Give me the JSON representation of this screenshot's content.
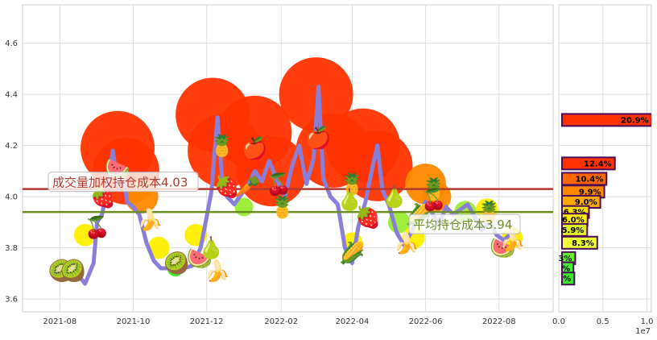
{
  "chart_data": [
    {
      "type": "line",
      "x_ticks": [
        "2021-08",
        "2021-10",
        "2021-12",
        "2022-02",
        "2022-04",
        "2022-06",
        "2022-08"
      ],
      "y_ticks": [
        "3.6",
        "3.8",
        "4.0",
        "4.2",
        "4.4",
        "4.6"
      ],
      "ylim": [
        3.55,
        4.75
      ],
      "xlim": [
        "2021-07-01",
        "2022-09-15"
      ],
      "grid": true,
      "series": [
        {
          "color": "#8a7fd8",
          "points": [
            [
              "2021-08-01",
              3.7
            ],
            [
              "2021-08-08",
              3.72
            ],
            [
              "2021-08-15",
              3.7
            ],
            [
              "2021-08-22",
              3.66
            ],
            [
              "2021-08-29",
              3.74
            ],
            [
              "2021-09-01",
              3.9
            ],
            [
              "2021-09-05",
              3.93
            ],
            [
              "2021-09-10",
              4.04
            ],
            [
              "2021-09-14",
              4.18
            ],
            [
              "2021-09-18",
              4.05
            ],
            [
              "2021-09-22",
              4.1
            ],
            [
              "2021-09-26",
              3.98
            ],
            [
              "2021-10-01",
              3.96
            ],
            [
              "2021-10-06",
              3.93
            ],
            [
              "2021-10-12",
              3.82
            ],
            [
              "2021-10-18",
              3.75
            ],
            [
              "2021-10-24",
              3.72
            ],
            [
              "2021-10-30",
              3.72
            ],
            [
              "2021-11-05",
              3.71
            ],
            [
              "2021-11-12",
              3.72
            ],
            [
              "2021-11-19",
              3.73
            ],
            [
              "2021-11-26",
              3.8
            ],
            [
              "2021-12-01",
              3.92
            ],
            [
              "2021-12-05",
              4.02
            ],
            [
              "2021-12-10",
              4.31
            ],
            [
              "2021-12-14",
              4.06
            ],
            [
              "2021-12-18",
              4.0
            ],
            [
              "2021-12-24",
              3.97
            ],
            [
              "2021-12-30",
              4.01
            ],
            [
              "2022-01-05",
              4.05
            ],
            [
              "2022-01-10",
              4.1
            ],
            [
              "2022-01-16",
              4.06
            ],
            [
              "2022-01-22",
              4.14
            ],
            [
              "2022-01-28",
              4.07
            ],
            [
              "2022-02-04",
              4.0
            ],
            [
              "2022-02-10",
              4.12
            ],
            [
              "2022-02-16",
              4.2
            ],
            [
              "2022-02-22",
              4.05
            ],
            [
              "2022-02-28",
              4.15
            ],
            [
              "2022-03-04",
              4.43
            ],
            [
              "2022-03-08",
              4.07
            ],
            [
              "2022-03-14",
              4.0
            ],
            [
              "2022-03-20",
              3.97
            ],
            [
              "2022-03-26",
              3.8
            ],
            [
              "2022-04-01",
              3.74
            ],
            [
              "2022-04-06",
              3.88
            ],
            [
              "2022-04-12",
              3.98
            ],
            [
              "2022-04-18",
              4.12
            ],
            [
              "2022-04-22",
              4.2
            ],
            [
              "2022-04-26",
              4.03
            ],
            [
              "2022-05-02",
              3.96
            ],
            [
              "2022-05-08",
              3.86
            ],
            [
              "2022-05-14",
              3.81
            ],
            [
              "2022-05-20",
              3.86
            ],
            [
              "2022-05-26",
              3.92
            ],
            [
              "2022-06-01",
              3.98
            ],
            [
              "2022-06-06",
              3.94
            ],
            [
              "2022-06-12",
              3.89
            ],
            [
              "2022-06-18",
              3.96
            ],
            [
              "2022-06-24",
              3.93
            ],
            [
              "2022-06-30",
              3.95
            ],
            [
              "2022-07-06",
              3.97
            ],
            [
              "2022-07-12",
              3.92
            ],
            [
              "2022-07-18",
              3.87
            ],
            [
              "2022-07-24",
              3.9
            ],
            [
              "2022-07-30",
              3.85
            ],
            [
              "2022-08-05",
              3.83
            ],
            [
              "2022-08-12",
              3.86
            ]
          ]
        }
      ],
      "hlines": [
        {
          "value": 4.03,
          "color": "#b03a2e",
          "label": "成交量加权持仓成本4.03",
          "label_color": "#b03a2e"
        },
        {
          "value": 3.94,
          "color": "#6b8e23",
          "label": "平均持仓成本3.94",
          "label_color": "#6b8e23"
        }
      ],
      "bubbles": [
        {
          "x": "2021-09-18",
          "y": 4.19,
          "r": 1.0,
          "color": "#ff3300"
        },
        {
          "x": "2021-09-25",
          "y": 4.1,
          "r": 0.9,
          "color": "#ff3300"
        },
        {
          "x": "2021-10-08",
          "y": 4.0,
          "r": 0.45,
          "color": "#ff8800"
        },
        {
          "x": "2021-12-06",
          "y": 4.32,
          "r": 1.0,
          "color": "#ff3300"
        },
        {
          "x": "2021-12-16",
          "y": 4.18,
          "r": 1.0,
          "color": "#ff3300"
        },
        {
          "x": "2022-01-10",
          "y": 4.25,
          "r": 1.0,
          "color": "#ff3300"
        },
        {
          "x": "2022-01-24",
          "y": 4.1,
          "r": 0.95,
          "color": "#ff3300"
        },
        {
          "x": "2022-03-02",
          "y": 4.4,
          "r": 1.0,
          "color": "#ff3300"
        },
        {
          "x": "2022-03-16",
          "y": 4.18,
          "r": 1.0,
          "color": "#ff3300"
        },
        {
          "x": "2022-04-10",
          "y": 4.2,
          "r": 1.0,
          "color": "#ff3300"
        },
        {
          "x": "2022-04-22",
          "y": 4.12,
          "r": 0.95,
          "color": "#ff3300"
        },
        {
          "x": "2022-06-01",
          "y": 4.05,
          "r": 0.55,
          "color": "#ff8800"
        },
        {
          "x": "2022-06-10",
          "y": 4.0,
          "r": 0.4,
          "color": "#ff8800"
        },
        {
          "x": "2021-08-22",
          "y": 3.85,
          "r": 0.3,
          "color": "#ffee00"
        },
        {
          "x": "2021-08-10",
          "y": 3.72,
          "r": 0.2,
          "color": "#33ee22"
        },
        {
          "x": "2021-10-22",
          "y": 3.8,
          "r": 0.3,
          "color": "#ffee00"
        },
        {
          "x": "2021-11-05",
          "y": 3.72,
          "r": 0.22,
          "color": "#33ee22"
        },
        {
          "x": "2021-11-22",
          "y": 3.85,
          "r": 0.3,
          "color": "#ffee00"
        },
        {
          "x": "2022-01-01",
          "y": 3.96,
          "r": 0.25,
          "color": "#99ee33"
        },
        {
          "x": "2022-04-01",
          "y": 3.82,
          "r": 0.28,
          "color": "#ffee00"
        },
        {
          "x": "2022-05-10",
          "y": 3.9,
          "r": 0.3,
          "color": "#99ee33"
        },
        {
          "x": "2022-05-22",
          "y": 3.84,
          "r": 0.3,
          "color": "#ffee00"
        },
        {
          "x": "2022-07-04",
          "y": 3.94,
          "r": 0.3,
          "color": "#99ee33"
        },
        {
          "x": "2022-07-22",
          "y": 3.95,
          "r": 0.3,
          "color": "#ffee00"
        },
        {
          "x": "2022-08-12",
          "y": 3.84,
          "r": 0.28,
          "color": "#ffee00"
        }
      ],
      "fruit": [
        {
          "x": "2021-09-18",
          "y": 4.11,
          "glyph": "🍉"
        },
        {
          "x": "2021-09-06",
          "y": 4.0,
          "glyph": "🍓"
        },
        {
          "x": "2021-09-01",
          "y": 3.88,
          "glyph": "🍒"
        },
        {
          "x": "2021-10-15",
          "y": 3.91,
          "glyph": "🍌"
        },
        {
          "x": "2021-08-02",
          "y": 3.71,
          "glyph": "🥝"
        },
        {
          "x": "2021-08-12",
          "y": 3.71,
          "glyph": "🥝"
        },
        {
          "x": "2021-11-06",
          "y": 3.74,
          "glyph": "🥝"
        },
        {
          "x": "2021-11-25",
          "y": 3.76,
          "glyph": "🍉"
        },
        {
          "x": "2021-12-05",
          "y": 3.8,
          "glyph": "🍐"
        },
        {
          "x": "2021-12-10",
          "y": 3.71,
          "glyph": "🍌"
        },
        {
          "x": "2021-12-14",
          "y": 4.2,
          "glyph": "🍍"
        },
        {
          "x": "2021-12-18",
          "y": 4.04,
          "glyph": "🍓"
        },
        {
          "x": "2022-01-04",
          "y": 4.04,
          "glyph": "🥕"
        },
        {
          "x": "2022-01-10",
          "y": 4.19,
          "glyph": "🍎"
        },
        {
          "x": "2022-01-30",
          "y": 4.05,
          "glyph": "🍒"
        },
        {
          "x": "2022-02-02",
          "y": 3.96,
          "glyph": "🍍"
        },
        {
          "x": "2022-03-04",
          "y": 4.23,
          "glyph": "🍎"
        },
        {
          "x": "2022-04-01",
          "y": 4.05,
          "glyph": "🍍"
        },
        {
          "x": "2022-03-30",
          "y": 3.99,
          "glyph": "🍐"
        },
        {
          "x": "2022-04-14",
          "y": 3.92,
          "glyph": "🍓"
        },
        {
          "x": "2022-04-01",
          "y": 3.78,
          "glyph": "🌽"
        },
        {
          "x": "2022-05-06",
          "y": 4.0,
          "glyph": "🍐"
        },
        {
          "x": "2022-05-16",
          "y": 3.82,
          "glyph": "🍌"
        },
        {
          "x": "2022-05-26",
          "y": 3.93,
          "glyph": "🌽"
        },
        {
          "x": "2022-06-08",
          "y": 4.03,
          "glyph": "🍍"
        },
        {
          "x": "2022-06-08",
          "y": 3.99,
          "glyph": "🍒"
        },
        {
          "x": "2022-07-24",
          "y": 3.94,
          "glyph": "🍍"
        },
        {
          "x": "2022-08-04",
          "y": 3.8,
          "glyph": "🍉"
        },
        {
          "x": "2022-08-12",
          "y": 3.83,
          "glyph": "🍌"
        }
      ]
    },
    {
      "type": "bar",
      "orientation": "horizontal",
      "x_ticks": [
        "0.0",
        "0.5",
        "1.0"
      ],
      "x_multiplier": "1e7",
      "xlim": [
        0,
        10500000
      ],
      "bars": [
        {
          "y": 4.3,
          "value": 10200000,
          "label": "20.9%",
          "color": "#ff3300"
        },
        {
          "y": 4.13,
          "value": 6000000,
          "label": "12.4%",
          "color": "#ff3300"
        },
        {
          "y": 4.07,
          "value": 5050000,
          "label": "10.4%",
          "color": "#ff6600"
        },
        {
          "y": 4.02,
          "value": 4800000,
          "label": "9.9%",
          "color": "#ff8800"
        },
        {
          "y": 3.98,
          "value": 4350000,
          "label": "9.0%",
          "color": "#ffaa00"
        },
        {
          "y": 3.94,
          "value": 3060000,
          "label": "6.3%",
          "color": "#ffdd00"
        },
        {
          "y": 3.91,
          "value": 2900000,
          "label": "6.0%",
          "color": "#ffee00"
        },
        {
          "y": 3.87,
          "value": 2860000,
          "label": "5.9%",
          "color": "#ddee22"
        },
        {
          "y": 3.82,
          "value": 4000000,
          "label": "8.3%",
          "color": "#eeff33"
        },
        {
          "y": 3.76,
          "value": 1500000,
          "label": "3%",
          "color": "#66ee33"
        },
        {
          "y": 3.72,
          "value": 1300000,
          "label": "%",
          "color": "#44ee33"
        },
        {
          "y": 3.68,
          "value": 1400000,
          "label": "%",
          "color": "#33ee22"
        }
      ]
    }
  ]
}
